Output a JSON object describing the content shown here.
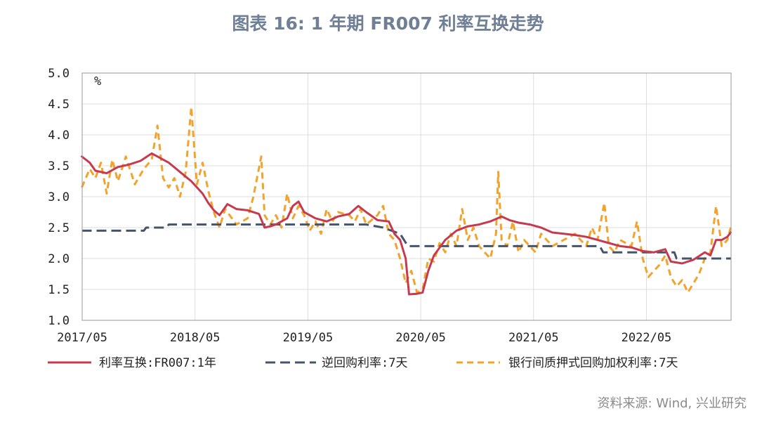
{
  "page": {
    "title": "图表 16:  1 年期 FR007 利率互换走势",
    "source": "资料来源: Wind, 兴业研究"
  },
  "colors": {
    "irs": "#c63a4f",
    "repo": "#44546a",
    "interbank": "#f2a32b",
    "grid": "#dddddd"
  },
  "chart_data": {
    "type": "line",
    "unit_label": "%",
    "ylim": [
      1.0,
      5.0
    ],
    "yticks": [
      "5.0",
      "4.5",
      "4.0",
      "3.5",
      "3.0",
      "2.5",
      "2.0",
      "1.5",
      "1.0"
    ],
    "x_range": [
      2017.333,
      2023.083
    ],
    "xticks": [
      {
        "label": "2017/05",
        "t": 2017.333
      },
      {
        "label": "2018/05",
        "t": 2018.333
      },
      {
        "label": "2019/05",
        "t": 2019.333
      },
      {
        "label": "2020/05",
        "t": 2020.333
      },
      {
        "label": "2021/05",
        "t": 2021.333
      },
      {
        "label": "2022/05",
        "t": 2022.333
      }
    ],
    "series": [
      {
        "name": "利率互换:FR007:1年",
        "style": "solid",
        "points": [
          [
            2017.33,
            3.65
          ],
          [
            2017.4,
            3.55
          ],
          [
            2017.45,
            3.42
          ],
          [
            2017.55,
            3.38
          ],
          [
            2017.65,
            3.48
          ],
          [
            2017.75,
            3.52
          ],
          [
            2017.85,
            3.58
          ],
          [
            2017.95,
            3.7
          ],
          [
            2018.0,
            3.65
          ],
          [
            2018.1,
            3.55
          ],
          [
            2018.2,
            3.4
          ],
          [
            2018.3,
            3.25
          ],
          [
            2018.4,
            3.05
          ],
          [
            2018.45,
            2.9
          ],
          [
            2018.5,
            2.78
          ],
          [
            2018.55,
            2.7
          ],
          [
            2018.62,
            2.88
          ],
          [
            2018.7,
            2.8
          ],
          [
            2018.8,
            2.78
          ],
          [
            2018.9,
            2.72
          ],
          [
            2018.95,
            2.5
          ],
          [
            2019.0,
            2.52
          ],
          [
            2019.05,
            2.55
          ],
          [
            2019.15,
            2.65
          ],
          [
            2019.2,
            2.85
          ],
          [
            2019.25,
            2.92
          ],
          [
            2019.3,
            2.75
          ],
          [
            2019.4,
            2.65
          ],
          [
            2019.5,
            2.6
          ],
          [
            2019.6,
            2.68
          ],
          [
            2019.7,
            2.72
          ],
          [
            2019.78,
            2.85
          ],
          [
            2019.85,
            2.75
          ],
          [
            2019.95,
            2.62
          ],
          [
            2020.05,
            2.6
          ],
          [
            2020.1,
            2.4
          ],
          [
            2020.15,
            2.3
          ],
          [
            2020.2,
            2.0
          ],
          [
            2020.23,
            1.42
          ],
          [
            2020.3,
            1.43
          ],
          [
            2020.35,
            1.45
          ],
          [
            2020.4,
            1.8
          ],
          [
            2020.45,
            2.05
          ],
          [
            2020.55,
            2.3
          ],
          [
            2020.65,
            2.45
          ],
          [
            2020.75,
            2.52
          ],
          [
            2020.85,
            2.55
          ],
          [
            2020.95,
            2.6
          ],
          [
            2021.05,
            2.68
          ],
          [
            2021.12,
            2.62
          ],
          [
            2021.2,
            2.58
          ],
          [
            2021.3,
            2.55
          ],
          [
            2021.4,
            2.5
          ],
          [
            2021.5,
            2.42
          ],
          [
            2021.6,
            2.4
          ],
          [
            2021.7,
            2.38
          ],
          [
            2021.8,
            2.35
          ],
          [
            2021.9,
            2.3
          ],
          [
            2022.0,
            2.25
          ],
          [
            2022.1,
            2.2
          ],
          [
            2022.2,
            2.18
          ],
          [
            2022.3,
            2.12
          ],
          [
            2022.4,
            2.1
          ],
          [
            2022.5,
            2.15
          ],
          [
            2022.55,
            1.95
          ],
          [
            2022.65,
            1.92
          ],
          [
            2022.75,
            1.98
          ],
          [
            2022.85,
            2.1
          ],
          [
            2022.9,
            2.05
          ],
          [
            2022.95,
            2.3
          ],
          [
            2023.0,
            2.3
          ],
          [
            2023.05,
            2.35
          ],
          [
            2023.08,
            2.42
          ]
        ]
      },
      {
        "name": "逆回购利率:7天",
        "style": "dashed",
        "points": [
          [
            2017.33,
            2.45
          ],
          [
            2017.88,
            2.45
          ],
          [
            2017.9,
            2.5
          ],
          [
            2018.08,
            2.5
          ],
          [
            2018.1,
            2.55
          ],
          [
            2019.85,
            2.55
          ],
          [
            2020.0,
            2.5
          ],
          [
            2020.15,
            2.4
          ],
          [
            2020.22,
            2.2
          ],
          [
            2021.92,
            2.2
          ],
          [
            2021.95,
            2.1
          ],
          [
            2022.58,
            2.1
          ],
          [
            2022.6,
            2.0
          ],
          [
            2023.08,
            2.0
          ]
        ]
      },
      {
        "name": "银行间质押式回购加权利率:7天",
        "style": "dashed",
        "points": [
          [
            2017.33,
            3.15
          ],
          [
            2017.4,
            3.45
          ],
          [
            2017.45,
            3.3
          ],
          [
            2017.5,
            3.55
          ],
          [
            2017.55,
            3.05
          ],
          [
            2017.6,
            3.6
          ],
          [
            2017.65,
            3.25
          ],
          [
            2017.72,
            3.65
          ],
          [
            2017.8,
            3.2
          ],
          [
            2017.88,
            3.45
          ],
          [
            2017.95,
            3.6
          ],
          [
            2018.0,
            4.15
          ],
          [
            2018.05,
            3.3
          ],
          [
            2018.1,
            3.15
          ],
          [
            2018.15,
            3.3
          ],
          [
            2018.2,
            3.0
          ],
          [
            2018.25,
            3.4
          ],
          [
            2018.3,
            4.45
          ],
          [
            2018.35,
            3.2
          ],
          [
            2018.4,
            3.55
          ],
          [
            2018.45,
            3.1
          ],
          [
            2018.5,
            2.75
          ],
          [
            2018.55,
            2.5
          ],
          [
            2018.6,
            2.8
          ],
          [
            2018.7,
            2.55
          ],
          [
            2018.8,
            2.65
          ],
          [
            2018.85,
            3.0
          ],
          [
            2018.92,
            3.65
          ],
          [
            2018.95,
            2.7
          ],
          [
            2019.0,
            2.55
          ],
          [
            2019.05,
            2.7
          ],
          [
            2019.1,
            2.5
          ],
          [
            2019.15,
            3.05
          ],
          [
            2019.2,
            2.65
          ],
          [
            2019.25,
            2.85
          ],
          [
            2019.3,
            2.7
          ],
          [
            2019.35,
            2.45
          ],
          [
            2019.4,
            2.6
          ],
          [
            2019.45,
            2.4
          ],
          [
            2019.5,
            2.8
          ],
          [
            2019.55,
            2.6
          ],
          [
            2019.6,
            2.75
          ],
          [
            2019.7,
            2.7
          ],
          [
            2019.75,
            2.6
          ],
          [
            2019.8,
            2.8
          ],
          [
            2019.85,
            2.55
          ],
          [
            2019.95,
            2.7
          ],
          [
            2020.0,
            2.85
          ],
          [
            2020.05,
            2.4
          ],
          [
            2020.1,
            2.3
          ],
          [
            2020.15,
            2.0
          ],
          [
            2020.2,
            1.6
          ],
          [
            2020.25,
            1.8
          ],
          [
            2020.3,
            1.45
          ],
          [
            2020.35,
            1.5
          ],
          [
            2020.4,
            2.0
          ],
          [
            2020.45,
            1.95
          ],
          [
            2020.5,
            2.25
          ],
          [
            2020.55,
            2.1
          ],
          [
            2020.6,
            2.4
          ],
          [
            2020.65,
            2.2
          ],
          [
            2020.7,
            2.8
          ],
          [
            2020.75,
            2.3
          ],
          [
            2020.8,
            2.5
          ],
          [
            2020.85,
            2.2
          ],
          [
            2020.95,
            2.0
          ],
          [
            2021.0,
            2.4
          ],
          [
            2021.02,
            3.4
          ],
          [
            2021.05,
            2.3
          ],
          [
            2021.1,
            2.2
          ],
          [
            2021.15,
            2.6
          ],
          [
            2021.2,
            2.1
          ],
          [
            2021.25,
            2.3
          ],
          [
            2021.35,
            2.1
          ],
          [
            2021.4,
            2.4
          ],
          [
            2021.5,
            2.2
          ],
          [
            2021.6,
            2.3
          ],
          [
            2021.7,
            2.4
          ],
          [
            2021.8,
            2.2
          ],
          [
            2021.85,
            2.5
          ],
          [
            2021.9,
            2.3
          ],
          [
            2021.96,
            2.9
          ],
          [
            2022.0,
            2.2
          ],
          [
            2022.05,
            2.1
          ],
          [
            2022.1,
            2.3
          ],
          [
            2022.2,
            2.2
          ],
          [
            2022.25,
            2.6
          ],
          [
            2022.3,
            2.0
          ],
          [
            2022.35,
            1.7
          ],
          [
            2022.4,
            1.8
          ],
          [
            2022.45,
            1.9
          ],
          [
            2022.5,
            2.05
          ],
          [
            2022.55,
            1.7
          ],
          [
            2022.6,
            1.55
          ],
          [
            2022.65,
            1.65
          ],
          [
            2022.7,
            1.45
          ],
          [
            2022.75,
            1.6
          ],
          [
            2022.8,
            1.75
          ],
          [
            2022.85,
            2.0
          ],
          [
            2022.9,
            2.1
          ],
          [
            2022.95,
            2.85
          ],
          [
            2023.0,
            2.2
          ],
          [
            2023.05,
            2.3
          ],
          [
            2023.08,
            2.5
          ]
        ]
      }
    ]
  }
}
